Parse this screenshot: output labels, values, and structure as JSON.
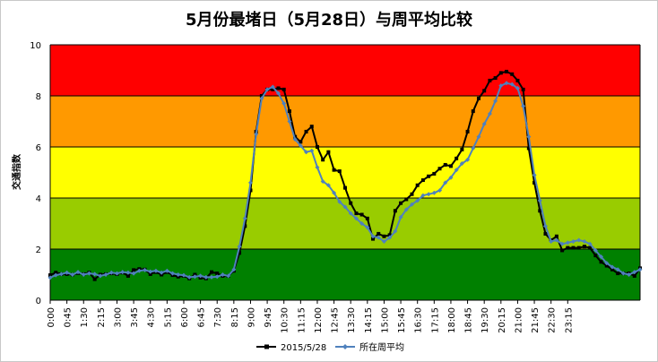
{
  "chart_data": {
    "type": "line",
    "title": "5月份最堵日（5月28日）与周平均比较",
    "ylabel": "交通指数",
    "xlabel": "",
    "ylim": [
      0,
      10
    ],
    "y_ticks": [
      "0",
      "2",
      "4",
      "6",
      "8",
      "10"
    ],
    "x_tick_labels": [
      "0:00",
      "0:45",
      "1:30",
      "2:15",
      "3:00",
      "3:45",
      "4:30",
      "5:15",
      "6:00",
      "6:45",
      "7:30",
      "8:15",
      "9:00",
      "9:45",
      "10:30",
      "11:15",
      "12:00",
      "12:45",
      "13:30",
      "14:15",
      "15:00",
      "15:45",
      "16:30",
      "17:15",
      "18:00",
      "18:45",
      "19:30",
      "20:15",
      "21:00",
      "21:45",
      "22:30",
      "23:15"
    ],
    "grid": true,
    "legend_position": "bottom",
    "bands": [
      {
        "from": 0,
        "to": 2,
        "color": "#008000"
      },
      {
        "from": 2,
        "to": 4,
        "color": "#99cc00"
      },
      {
        "from": 4,
        "to": 6,
        "color": "#ffff00"
      },
      {
        "from": 6,
        "to": 8,
        "color": "#ff9900"
      },
      {
        "from": 8,
        "to": 10,
        "color": "#ff0000"
      }
    ],
    "series": [
      {
        "name": "2015/5/28",
        "color": "#000000",
        "values": [
          0.98,
          1.08,
          1.02,
          1.02,
          1.0,
          1.06,
          1.02,
          1.08,
          0.82,
          1.0,
          1.02,
          1.05,
          1.02,
          1.08,
          0.95,
          1.18,
          1.22,
          1.2,
          1.02,
          1.1,
          1.0,
          1.1,
          0.98,
          0.92,
          0.95,
          0.85,
          1.0,
          0.88,
          0.85,
          1.1,
          1.05,
          0.95,
          0.95,
          1.15,
          1.85,
          2.9,
          4.3,
          6.6,
          8.0,
          8.25,
          8.25,
          8.3,
          8.25,
          7.4,
          6.4,
          6.2,
          6.6,
          6.8,
          6.0,
          5.5,
          5.8,
          5.1,
          5.05,
          4.4,
          3.8,
          3.4,
          3.35,
          3.2,
          2.4,
          2.6,
          2.5,
          2.55,
          3.5,
          3.8,
          3.95,
          4.15,
          4.5,
          4.7,
          4.85,
          4.95,
          5.15,
          5.3,
          5.25,
          5.55,
          5.9,
          6.6,
          7.4,
          7.9,
          8.2,
          8.6,
          8.7,
          8.9,
          8.95,
          8.85,
          8.6,
          8.25,
          5.95,
          4.6,
          3.5,
          2.6,
          2.35,
          2.5,
          1.95,
          2.05,
          2.05,
          2.05,
          2.1,
          2.05,
          1.75,
          1.5,
          1.35,
          1.2,
          1.05,
          1.05,
          1.05,
          0.95,
          1.25
        ]
      },
      {
        "name": "所在周平均",
        "color": "#4f81bd",
        "values": [
          0.88,
          0.98,
          1.02,
          1.08,
          1.0,
          1.1,
          1.0,
          1.05,
          1.02,
          0.95,
          1.0,
          1.08,
          1.05,
          1.1,
          1.08,
          1.05,
          1.15,
          1.18,
          1.12,
          1.15,
          1.08,
          1.15,
          1.05,
          1.0,
          0.98,
          0.9,
          0.92,
          0.95,
          0.9,
          0.9,
          0.92,
          1.0,
          0.95,
          1.2,
          2.1,
          3.2,
          4.6,
          6.5,
          7.9,
          8.25,
          8.35,
          8.1,
          7.7,
          7.0,
          6.3,
          6.05,
          5.8,
          5.85,
          5.2,
          4.65,
          4.5,
          4.2,
          3.85,
          3.65,
          3.4,
          3.2,
          3.0,
          2.85,
          2.5,
          2.45,
          2.3,
          2.45,
          2.7,
          3.25,
          3.55,
          3.75,
          3.9,
          4.1,
          4.15,
          4.2,
          4.3,
          4.6,
          4.8,
          5.1,
          5.35,
          5.5,
          5.95,
          6.4,
          6.9,
          7.3,
          7.8,
          8.4,
          8.5,
          8.45,
          8.3,
          7.6,
          6.4,
          4.9,
          3.9,
          2.9,
          2.3,
          2.35,
          2.2,
          2.25,
          2.3,
          2.35,
          2.3,
          2.2,
          1.95,
          1.7,
          1.45,
          1.3,
          1.2,
          1.05,
          1.0,
          1.1,
          1.2
        ]
      }
    ]
  }
}
